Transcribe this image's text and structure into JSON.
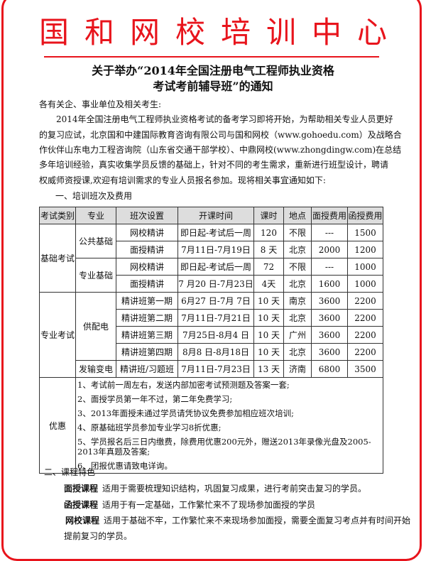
{
  "header": {
    "org": "国和网校培训中心",
    "title_line1": "关于举办“2014年全国注册电气工程师执业资格",
    "title_line2": "考试考前辅导班”的通知",
    "accent_color": "#e8141c"
  },
  "body": {
    "salutation": "各有关企、事业单位及相关考生:",
    "lines": [
      "　　2014年全国注册电气工程师执业资格考试的备考学习即将开始，为帮助相关专业人员更好",
      "的复习应试，北京国和中建国际教育咨询有限公司与国和网校（www.gohoedu.com）及战略合",
      "作伙伴山东电力工程咨询院（山东省交通干部学校）、中鼎网校(www.zhongdingw.com)在总结",
      "多年培训经验，真实收集学员反馈的基础上，针对不同的考生需求，重新进行班型设计，聘请",
      "权威师资授课,欢迎有培训需求的专业人员报名参加。现将相关事宜通知如下:"
    ],
    "section1": "一、培训班次及费用"
  },
  "table": {
    "headers": [
      "考试类别",
      "专业",
      "班次设置",
      "开课时间",
      "课时",
      "地点",
      "面授费用",
      "函授费用"
    ],
    "cat1": "基础考试",
    "cat2": "专业考试",
    "major1": "公共基础",
    "major2": "专业基础",
    "major3": "供配电",
    "major4": "发输变电",
    "rows": [
      [
        "网校精讲",
        "即日起-考试后一周",
        "120",
        "不限",
        "---",
        "1500"
      ],
      [
        "面授精讲",
        "7月11日-7月19日",
        "8 天",
        "北京",
        "2000",
        "1200"
      ],
      [
        "网校精讲",
        "即日起-考试后一周",
        "72",
        "不限",
        "---",
        "1000"
      ],
      [
        "面授精讲",
        "7 月20 日-7月23日",
        "4天",
        "北京",
        "1600",
        "1000"
      ],
      [
        "精讲班第一期",
        "6月27 日-7月 7日",
        "10 天",
        "南京",
        "3600",
        "2200"
      ],
      [
        "精讲班第二期",
        "7月11日-7月21日",
        "10 天",
        "北京",
        "3600",
        "2200"
      ],
      [
        "精讲班第三期",
        "7月25日-8月4 日",
        "10 天",
        "广州",
        "3600",
        "2200"
      ],
      [
        "精讲班第四期",
        "8月8 日-8月18日",
        "10 天",
        "北京",
        "3600",
        "2200"
      ],
      [
        "精讲班/习题班",
        "7月11日-7月23日",
        "13 天",
        "济南",
        "6800",
        "3500"
      ]
    ],
    "perks_label": "优惠",
    "perks": [
      "1、考试前一周左右，发送内部加密考试预测题及答案一套;",
      "2、面授学员第一年不过，第二年免费学习;",
      "3、2013年面授未通过学员请凭协议免费参加相应班次培训;",
      "4、原基础班学员参加专业学习8折优惠;",
      "5、学员报名后三日内缴费，除费用优惠200元外，赠送2013年录像光盘及2005-2013年真题及答案;",
      "6、团报优惠请致电详询。"
    ]
  },
  "section2": {
    "title": "二、课程特色",
    "items": [
      {
        "name": "面授课程",
        "desc": "适用于需要梳理知识结构，巩固复习成果，进行考前突击复习的学员。"
      },
      {
        "name": "函授课程",
        "desc": "适用于有一定基础，工作繁忙来不了现场参加面授的学员"
      },
      {
        "name": "网校课程",
        "desc": "适用于基础不牢，工作繁忙来不来现场参加面授，需要全面复习考点并有时间开始"
      }
    ],
    "tail": "提前复习的学员。"
  }
}
